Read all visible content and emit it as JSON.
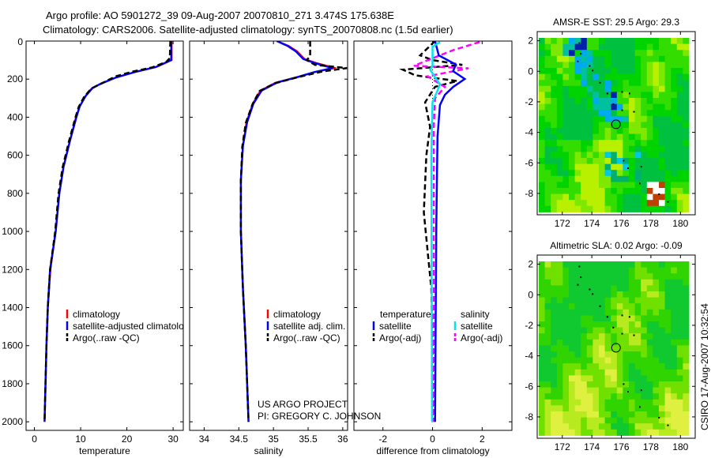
{
  "title": {
    "line1": "Argo profile: AO 5901272_39 09-Aug-2007 20070810_271 3.474S 175.638E",
    "line2": "Climatology: CARS2006. Satellite-adjusted climatology: synTS_20070808.nc (1.5d earlier)"
  },
  "credits": {
    "project": "US ARGO PROJECT",
    "pi": "PI: GREGORY C. JOHNSON",
    "stamp": "CSIRO 17-Aug-2007 10:32:54"
  },
  "chart_data": [
    {
      "type": "line",
      "id": "temperature",
      "xlabel": "temperature",
      "ylabel": "",
      "xlim": [
        -1.8,
        32.2
      ],
      "ylim": [
        2045,
        0
      ],
      "xticks": [
        0,
        10,
        20,
        30
      ],
      "yticks": [
        0,
        200,
        400,
        600,
        800,
        1000,
        1200,
        1400,
        1600,
        1800,
        2000
      ],
      "show_ytick_labels": true,
      "legend": {
        "placement": "lower-left",
        "entries": [
          {
            "label": "climatology",
            "color": "#ff0000"
          },
          {
            "label": "satellite-adjusted climatology",
            "color": "#0000ff"
          },
          {
            "label": "Argo(..raw -QC)",
            "color": "#000000"
          }
        ]
      },
      "series": [
        {
          "name": "climatology",
          "color": "#ff0000",
          "dash": false,
          "width": 2,
          "points": [
            [
              29.7,
              0
            ],
            [
              29.7,
              100
            ],
            [
              26.6,
              134
            ],
            [
              22,
              161
            ],
            [
              18,
              188
            ],
            [
              14.5,
              222
            ],
            [
              12.4,
              248
            ],
            [
              11,
              290
            ],
            [
              9.8,
              343
            ],
            [
              9,
              398
            ],
            [
              7.7,
              523
            ],
            [
              6.3,
              661
            ],
            [
              5.4,
              800
            ],
            [
              4.6,
              1000
            ],
            [
              3.5,
              1200
            ],
            [
              2.9,
              1400
            ],
            [
              2.6,
              1600
            ],
            [
              2.4,
              1800
            ],
            [
              2.2,
              2000
            ]
          ]
        },
        {
          "name": "satellite-adjusted climatology",
          "color": "#0000ff",
          "dash": false,
          "width": 2.5,
          "points": [
            [
              29.6,
              0
            ],
            [
              29.6,
              100
            ],
            [
              26.3,
              136
            ],
            [
              21.7,
              163
            ],
            [
              17.7,
              191
            ],
            [
              14.3,
              225
            ],
            [
              12.6,
              246
            ],
            [
              11.1,
              288
            ],
            [
              9.8,
              343
            ],
            [
              9.1,
              398
            ],
            [
              7.7,
              523
            ],
            [
              6.3,
              661
            ],
            [
              5.4,
              800
            ],
            [
              4.6,
              1000
            ],
            [
              3.4,
              1200
            ],
            [
              2.9,
              1400
            ],
            [
              2.6,
              1600
            ],
            [
              2.4,
              1800
            ],
            [
              2.2,
              2000
            ]
          ]
        },
        {
          "name": "Argo(..raw -QC)",
          "color": "#000000",
          "dash": true,
          "width": 2.5,
          "points": [
            [
              29.4,
              0
            ],
            [
              29.3,
              90
            ],
            [
              28.5,
              110
            ],
            [
              25.5,
              138
            ],
            [
              21.3,
              160
            ],
            [
              17.5,
              186
            ],
            [
              14.6,
              222
            ],
            [
              12.3,
              250
            ],
            [
              10.8,
              292
            ],
            [
              9.6,
              345
            ],
            [
              8.9,
              400
            ],
            [
              7.5,
              525
            ],
            [
              6.1,
              665
            ],
            [
              5.2,
              805
            ],
            [
              4.5,
              1000
            ],
            [
              3.4,
              1200
            ],
            [
              2.9,
              1400
            ],
            [
              2.6,
              1600
            ],
            [
              2.4,
              1800
            ],
            [
              2.2,
              2000
            ]
          ]
        }
      ]
    },
    {
      "type": "line",
      "id": "salinity",
      "xlabel": "salinity",
      "ylabel": "",
      "xlim": [
        33.79,
        36.07
      ],
      "ylim": [
        2045,
        0
      ],
      "xticks": [
        34,
        34.5,
        35,
        35.5,
        36
      ],
      "yticks": [
        0,
        200,
        400,
        600,
        800,
        1000,
        1200,
        1400,
        1600,
        1800,
        2000
      ],
      "show_ytick_labels": false,
      "legend": {
        "placement": "lower-right",
        "entries": [
          {
            "label": "climatology",
            "color": "#ff0000"
          },
          {
            "label": "satellite adj. clim.",
            "color": "#0000ff"
          },
          {
            "label": "Argo(..raw -QC)",
            "color": "#000000"
          }
        ]
      },
      "series": [
        {
          "name": "climatology",
          "color": "#ff0000",
          "dash": false,
          "width": 2,
          "points": [
            [
              35.05,
              0
            ],
            [
              35.22,
              25
            ],
            [
              35.34,
              53
            ],
            [
              35.45,
              94
            ],
            [
              35.62,
              115
            ],
            [
              35.9,
              142
            ],
            [
              35.6,
              163
            ],
            [
              35.35,
              188
            ],
            [
              35.03,
              218
            ],
            [
              34.81,
              260
            ],
            [
              34.7,
              329
            ],
            [
              34.61,
              426
            ],
            [
              34.56,
              550
            ],
            [
              34.53,
              730
            ],
            [
              34.53,
              1000
            ],
            [
              34.56,
              1300
            ],
            [
              34.6,
              1600
            ],
            [
              34.64,
              2000
            ]
          ]
        },
        {
          "name": "satellite adj. clim.",
          "color": "#0000ff",
          "dash": false,
          "width": 2.5,
          "points": [
            [
              35.05,
              0
            ],
            [
              35.2,
              25
            ],
            [
              35.32,
              53
            ],
            [
              35.43,
              94
            ],
            [
              35.59,
              115
            ],
            [
              35.85,
              142
            ],
            [
              35.59,
              163
            ],
            [
              35.36,
              188
            ],
            [
              35.05,
              218
            ],
            [
              34.83,
              260
            ],
            [
              34.71,
              329
            ],
            [
              34.62,
              426
            ],
            [
              34.56,
              550
            ],
            [
              34.53,
              730
            ],
            [
              34.53,
              1000
            ],
            [
              34.56,
              1300
            ],
            [
              34.6,
              1600
            ],
            [
              34.64,
              2000
            ]
          ]
        },
        {
          "name": "Argo(..raw -QC)",
          "color": "#000000",
          "dash": true,
          "width": 2.5,
          "points": [
            [
              35.53,
              0
            ],
            [
              35.53,
              80
            ],
            [
              35.48,
              100
            ],
            [
              35.6,
              125
            ],
            [
              36.06,
              142
            ],
            [
              35.7,
              160
            ],
            [
              35.35,
              190
            ],
            [
              35.02,
              222
            ],
            [
              34.8,
              262
            ],
            [
              34.7,
              330
            ],
            [
              34.6,
              430
            ],
            [
              34.55,
              555
            ],
            [
              34.53,
              735
            ],
            [
              34.53,
              1000
            ],
            [
              34.56,
              1300
            ],
            [
              34.6,
              1600
            ],
            [
              34.64,
              2000
            ]
          ]
        }
      ]
    },
    {
      "type": "line",
      "id": "difference",
      "xlabel": "difference from climatology",
      "ylabel": "",
      "xlim": [
        -3.17,
        3.2
      ],
      "ylim": [
        2045,
        0
      ],
      "xticks": [
        -2,
        0,
        2
      ],
      "yticks": [
        0,
        200,
        400,
        600,
        800,
        1000,
        1200,
        1400,
        1600,
        1800,
        2000
      ],
      "show_ytick_labels": false,
      "legend": {
        "placement": "lower-center",
        "headers": [
          "temperature",
          "salinity"
        ],
        "entries": [
          {
            "label": "satellite",
            "color": "#0000ff",
            "group": "temperature"
          },
          {
            "label": "Argo(-adj)",
            "color": "#000000",
            "group": "temperature"
          },
          {
            "label": "satellite",
            "color": "#00e5ee",
            "group": "salinity"
          },
          {
            "label": "Argo(-adj)",
            "color": "#ff00ff",
            "group": "salinity"
          }
        ]
      },
      "series": [
        {
          "name": "zero",
          "color": "#000000",
          "dash": "dot",
          "width": 1,
          "points": [
            [
              0,
              0
            ],
            [
              0,
              400
            ]
          ]
        },
        {
          "name": "temperature Argo(-adj)",
          "color": "#000000",
          "dash": true,
          "width": 2.5,
          "points": [
            [
              0.1,
              0
            ],
            [
              -0.5,
              75
            ],
            [
              0,
              100
            ],
            [
              1.2,
              125
            ],
            [
              -1.2,
              150
            ],
            [
              -0.7,
              180
            ],
            [
              1.0,
              210
            ],
            [
              0.1,
              240
            ],
            [
              -0.3,
              322
            ],
            [
              -0.1,
              450
            ],
            [
              -0.25,
              600
            ],
            [
              -0.3,
              750
            ],
            [
              -0.35,
              900
            ],
            [
              -0.2,
              1100
            ],
            [
              -0.05,
              1300
            ],
            [
              0,
              1600
            ],
            [
              0,
              2000
            ]
          ]
        },
        {
          "name": "salinity Argo(-adj)",
          "color": "#ff00ff",
          "dash": true,
          "width": 2.5,
          "points": [
            [
              1.9,
              5
            ],
            [
              0.85,
              47
            ],
            [
              0.3,
              75
            ],
            [
              -0.75,
              130
            ],
            [
              1.45,
              143
            ],
            [
              -0.2,
              185
            ],
            [
              0.5,
              241
            ],
            [
              0.1,
              300
            ],
            [
              0.05,
              450
            ],
            [
              0.05,
              2000
            ]
          ]
        },
        {
          "name": "temperature satellite",
          "color": "#0000ff",
          "dash": false,
          "width": 2.5,
          "points": [
            [
              0.1,
              0
            ],
            [
              0.25,
              75
            ],
            [
              0.94,
              123
            ],
            [
              0.83,
              158
            ],
            [
              1.3,
              199
            ],
            [
              0.83,
              241
            ],
            [
              0.5,
              282
            ],
            [
              0.3,
              336
            ],
            [
              0.2,
              502
            ],
            [
              0.15,
              1000
            ],
            [
              0.1,
              2000
            ]
          ]
        },
        {
          "name": "salinity satellite",
          "color": "#00e5ee",
          "dash": false,
          "width": 2.5,
          "points": [
            [
              0.3,
              5
            ],
            [
              0,
              30
            ],
            [
              0,
              130
            ],
            [
              -0.1,
              150
            ],
            [
              0.15,
              199
            ],
            [
              0.3,
              227
            ],
            [
              0.2,
              260
            ],
            [
              0,
              320
            ],
            [
              -0.05,
              600
            ],
            [
              -0.02,
              2000
            ]
          ]
        }
      ]
    },
    {
      "type": "heatmap",
      "id": "sst-map",
      "title": "AMSR-E SST: 29.5 Argo: 29.3",
      "xlim": [
        170.3,
        181.0
      ],
      "ylim": [
        -9.4,
        2.6
      ],
      "xticks": [
        172,
        174,
        176,
        178,
        180
      ],
      "yticks": [
        2,
        0,
        -2,
        -4,
        -6,
        -8
      ],
      "marker": {
        "lon": 175.638,
        "lat": -3.474
      }
    },
    {
      "type": "heatmap",
      "id": "sla-map",
      "title": "Altimetric SLA: 0.02 Argo: -0.09",
      "xlim": [
        170.3,
        181.0
      ],
      "ylim": [
        -9.4,
        2.6
      ],
      "xticks": [
        172,
        174,
        176,
        178,
        180
      ],
      "yticks": [
        2,
        0,
        -2,
        -4,
        -6,
        -8
      ],
      "marker": {
        "lon": 175.638,
        "lat": -3.474
      }
    }
  ]
}
